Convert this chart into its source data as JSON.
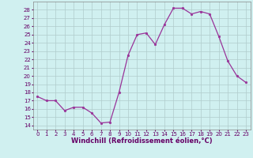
{
  "x": [
    0,
    1,
    2,
    3,
    4,
    5,
    6,
    7,
    8,
    9,
    10,
    11,
    12,
    13,
    14,
    15,
    16,
    17,
    18,
    19,
    20,
    21,
    22,
    23
  ],
  "y": [
    17.5,
    17.0,
    17.0,
    15.8,
    16.2,
    16.2,
    15.5,
    14.3,
    14.4,
    18.0,
    22.5,
    25.0,
    25.2,
    23.8,
    26.2,
    28.2,
    28.2,
    27.5,
    27.8,
    27.5,
    24.8,
    21.8,
    20.0,
    19.2
  ],
  "line_color": "#993399",
  "marker_color": "#993399",
  "bg_color": "#d0f0f0",
  "grid_color": "#b0cccc",
  "xlabel": "Windchill (Refroidissement éolien,°C)",
  "ylabel": "",
  "xlim": [
    -0.5,
    23.5
  ],
  "ylim": [
    13.5,
    29.0
  ],
  "yticks": [
    14,
    15,
    16,
    17,
    18,
    19,
    20,
    21,
    22,
    23,
    24,
    25,
    26,
    27,
    28
  ],
  "xticks": [
    0,
    1,
    2,
    3,
    4,
    5,
    6,
    7,
    8,
    9,
    10,
    11,
    12,
    13,
    14,
    15,
    16,
    17,
    18,
    19,
    20,
    21,
    22,
    23
  ],
  "tick_fontsize": 5.0,
  "xlabel_fontsize": 6.0,
  "marker_size": 2.0,
  "line_width": 0.9,
  "tick_color": "#660066",
  "label_color": "#660066"
}
